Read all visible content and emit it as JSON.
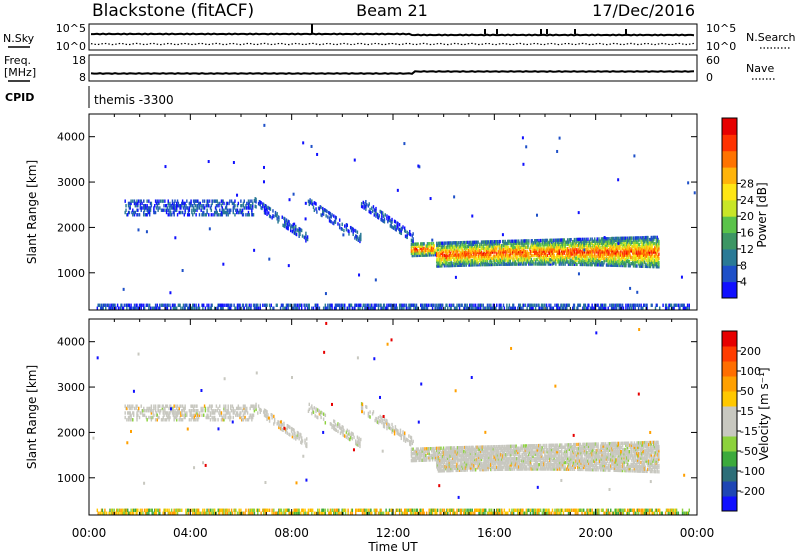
{
  "header": {
    "station": "Blackstone (fitACF)",
    "beam": "Beam 21",
    "date": "17/Dec/2016"
  },
  "scalars_panel1": {
    "left_label": "N.Sky",
    "right_label": "N.Search",
    "left_ticks": [
      "10^5",
      "10^0"
    ],
    "right_ticks": [
      "10^5",
      "10^0"
    ]
  },
  "scalars_panel2": {
    "left_label_line1": "Freq.",
    "left_label_line2": "[MHz]",
    "right_label": "Nave",
    "left_ticks": [
      "18",
      "8"
    ],
    "right_ticks": [
      "60",
      "0"
    ]
  },
  "cpid": {
    "label": "CPID",
    "value": "themis -3300"
  },
  "chart_data": [
    {
      "type": "heatmap",
      "name": "power",
      "xlabel": "",
      "ylabel": "Slant Range [km]",
      "xlim": [
        0,
        24
      ],
      "ylim": [
        180,
        4500
      ],
      "x_ticks": [
        "00:00",
        "04:00",
        "08:00",
        "12:00",
        "16:00",
        "20:00",
        "00:00"
      ],
      "y_ticks": [
        1000,
        2000,
        3000,
        4000
      ],
      "colorbar": {
        "label": "Power [dB]",
        "ticks": [
          "4",
          "8",
          "12",
          "16",
          "20",
          "24",
          "28"
        ],
        "colors": [
          "#1010ff",
          "#1e50c8",
          "#2a7a96",
          "#3c9664",
          "#5ac34a",
          "#c8e628",
          "#ffe614",
          "#ffb40a",
          "#ff7300",
          "#ff3200",
          "#e60000"
        ]
      },
      "echo_regions": [
        {
          "t": [
            0.3,
            23.7
          ],
          "range": [
            190,
            320
          ],
          "density": 0.55,
          "level": "low"
        },
        {
          "t": [
            12.7,
            22.5
          ],
          "range": [
            1050,
            1850
          ],
          "density": 0.7,
          "level": "mixed-high"
        },
        {
          "t": [
            6.5,
            12.8
          ],
          "range": [
            1600,
            2500
          ],
          "density": 0.4,
          "level": "low"
        },
        {
          "t": [
            1.4,
            6.5
          ],
          "range": [
            2250,
            2600
          ],
          "density": 0.35,
          "level": "low"
        }
      ]
    },
    {
      "type": "heatmap",
      "name": "velocity",
      "xlabel": "Time UT",
      "ylabel": "Slant Range [km]",
      "xlim": [
        0,
        24
      ],
      "ylim": [
        180,
        4500
      ],
      "x_ticks": [
        "00:00",
        "04:00",
        "08:00",
        "12:00",
        "16:00",
        "20:00",
        "00:00"
      ],
      "y_ticks": [
        1000,
        2000,
        3000,
        4000
      ],
      "colorbar": {
        "label": "Velocity [m s⁻¹]",
        "ticks": [
          "200",
          "100",
          "50",
          "15",
          "-15",
          "-50",
          "-100",
          "-200"
        ],
        "colors": [
          "#1010ff",
          "#1e46b4",
          "#2d6e78",
          "#3caa3c",
          "#8cd23c",
          "#c8c8c0",
          "#c8c8c0",
          "#ffc800",
          "#ffa000",
          "#ff6e00",
          "#ff3c00",
          "#e60000"
        ]
      },
      "echo_regions": [
        {
          "t": [
            0.3,
            23.7
          ],
          "range": [
            190,
            320
          ],
          "density": 0.55,
          "level": "orange-green"
        },
        {
          "t": [
            12.7,
            22.5
          ],
          "range": [
            1050,
            1850
          ],
          "density": 0.7,
          "level": "grey"
        },
        {
          "t": [
            6.5,
            12.8
          ],
          "range": [
            1600,
            2500
          ],
          "density": 0.4,
          "level": "grey"
        },
        {
          "t": [
            1.4,
            6.5
          ],
          "range": [
            2250,
            2600
          ],
          "density": 0.35,
          "level": "grey"
        }
      ]
    }
  ]
}
